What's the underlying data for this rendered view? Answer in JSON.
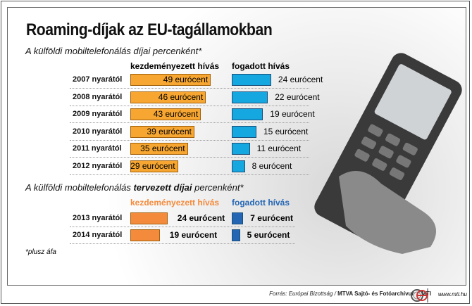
{
  "title": "Roaming-díjak az EU-tagállamokban",
  "section1": {
    "subtitle": "A külföldi mobiltelefonálás díjai percenként*",
    "col_out": "kezdeményezett hívás",
    "col_in": "fogadott hívás"
  },
  "section2": {
    "subtitle_pre": "A külföldi mobiltelefonálás ",
    "subtitle_bold": "tervezett díjai",
    "subtitle_post": " percenként*",
    "col_out": "kezdeményezett hívás",
    "col_in": "fogadott hívás"
  },
  "footnote": "*plusz áfa",
  "footer": {
    "source_pre": "Forrás: Európai Bizottság / ",
    "source_bold": "MTVA Sajtó- és Fotóarchívum / MTI",
    "url": "www.mti.hu"
  },
  "colors": {
    "out_actual": "#f7a631",
    "in_actual": "#14a7e0",
    "out_planned": "#f48a3c",
    "in_planned": "#2566b4"
  },
  "chart_data": [
    {
      "type": "bar",
      "title": "A külföldi mobiltelefonálás díjai percenként*",
      "categories": [
        "2007 nyarától",
        "2008 nyarától",
        "2009 nyarától",
        "2010 nyarától",
        "2011 nyarától",
        "2012 nyarától"
      ],
      "series": [
        {
          "name": "kezdeményezett hívás",
          "values": [
            49,
            46,
            43,
            39,
            35,
            29
          ],
          "labels": [
            "49 eurócent",
            "46 eurócent",
            "43 eurócent",
            "39 eurócent",
            "35 eurócent",
            "29 eurócent"
          ]
        },
        {
          "name": "fogadott hívás",
          "values": [
            24,
            22,
            19,
            15,
            11,
            8
          ],
          "labels": [
            "24 eurócent",
            "22 eurócent",
            "19 eurócent",
            "15 eurócent",
            "11 eurócent",
            "8 eurócent"
          ]
        }
      ],
      "unit": "eurócent"
    },
    {
      "type": "bar",
      "title": "A külföldi mobiltelefonálás tervezett díjai percenként*",
      "categories": [
        "2013 nyarától",
        "2014 nyarától"
      ],
      "series": [
        {
          "name": "kezdeményezett hívás",
          "values": [
            24,
            19
          ],
          "labels": [
            "24 eurócent",
            "19 eurócent"
          ]
        },
        {
          "name": "fogadott hívás",
          "values": [
            7,
            5
          ],
          "labels": [
            "7 eurócent",
            "5 eurócent"
          ]
        }
      ],
      "unit": "eurócent"
    }
  ]
}
